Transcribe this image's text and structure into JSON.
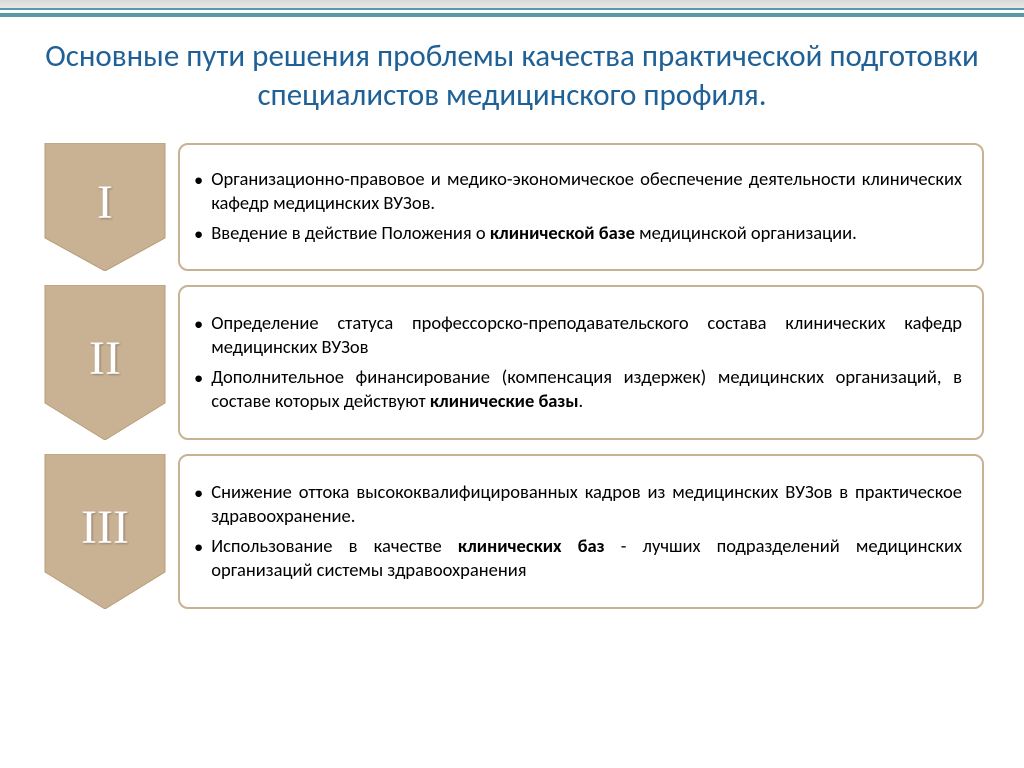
{
  "title": "Основные пути решения проблемы качества практической подготовки специалистов медицинского профиля.",
  "chevron_fill": "#c9b293",
  "chevron_stroke": "#b89d78",
  "box_border_color": "#c9b293",
  "title_color": "#1f6196",
  "text_color": "#000000",
  "items": [
    {
      "numeral": "I",
      "bullets": [
        "Организационно-правовое и медико-экономическое обеспечение деятельности клинических кафедр медицинских ВУЗов.",
        "Введение в действие Положения о <b>клинической базе</b> медицинской организации."
      ]
    },
    {
      "numeral": "II",
      "bullets": [
        "Определение статуса профессорско-преподавательского состава клинических кафедр медицинских ВУЗов",
        "Дополнительное финансирование (компенсация издержек) медицинских организаций, в составе которых действуют <b>клинические базы</b>."
      ]
    },
    {
      "numeral": "III",
      "bullets": [
        "Снижение оттока высококвалифицированных кадров из медицинских ВУЗов в практическое здравоохранение.",
        "Использование в качестве <b>клинических баз</b> - лучших подразделений медицинских организаций системы здравоохранения"
      ]
    }
  ]
}
